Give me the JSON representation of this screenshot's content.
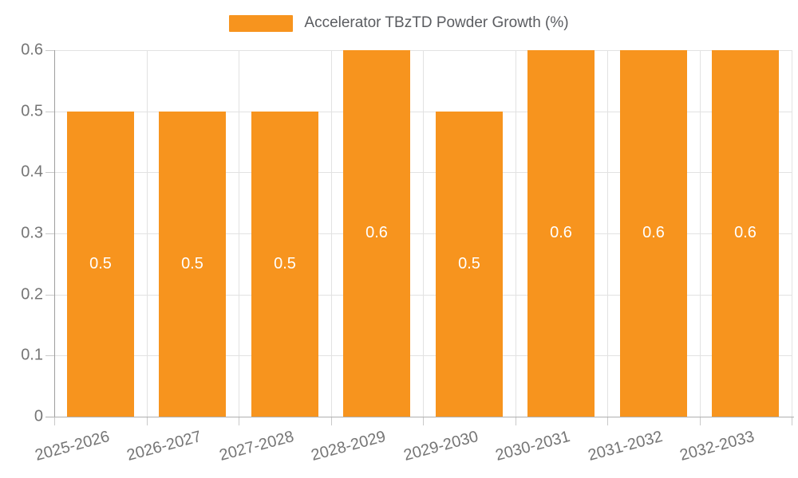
{
  "legend": {
    "label": "Accelerator TBzTD Powder Growth (%)"
  },
  "chart_data": {
    "type": "bar",
    "title": "Accelerator TBzTD Powder Growth (%)",
    "categories": [
      "2025-2026",
      "2026-2027",
      "2027-2028",
      "2028-2029",
      "2029-2030",
      "2030-2031",
      "2031-2032",
      "2032-2033"
    ],
    "series": [
      {
        "name": "Accelerator TBzTD Powder Growth (%)",
        "values": [
          0.5,
          0.5,
          0.5,
          0.6,
          0.5,
          0.6,
          0.6,
          0.6
        ],
        "color": "#F7941E"
      }
    ],
    "value_labels": [
      "0.5",
      "0.5",
      "0.5",
      "0.6",
      "0.5",
      "0.6",
      "0.6",
      "0.6"
    ],
    "value_label_color": "#FFFFFF",
    "xlabel": "",
    "ylabel": "",
    "ylim": [
      0,
      0.6
    ],
    "yticks": [
      0,
      0.1,
      0.2,
      0.3,
      0.4,
      0.5,
      0.6
    ],
    "ytick_labels": [
      "0",
      "0.1",
      "0.2",
      "0.3",
      "0.4",
      "0.5",
      "0.6"
    ],
    "grid": true,
    "legend_position": "top"
  }
}
